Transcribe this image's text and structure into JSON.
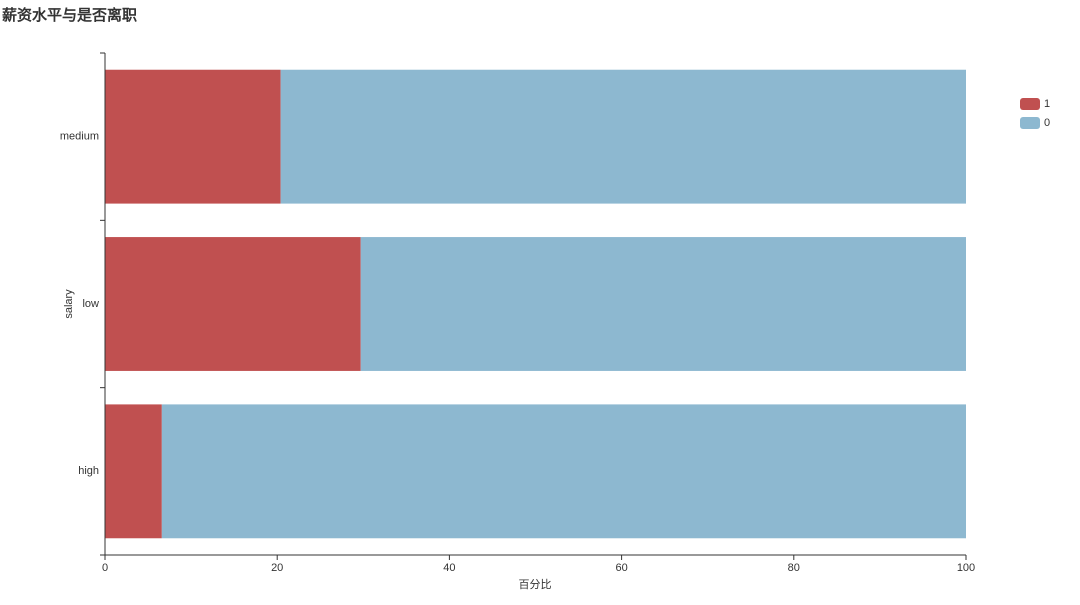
{
  "chart_data": {
    "type": "stacked-barh",
    "title": "薪资水平与是否离职",
    "x_label": "百分比",
    "y_label": "salary",
    "categories": [
      "medium",
      "low",
      "high"
    ],
    "series": [
      {
        "name": "1",
        "color": "#c05050",
        "values": [
          20.4,
          29.7,
          6.6
        ]
      },
      {
        "name": "0",
        "color": "#8db8d0",
        "values": [
          79.6,
          70.3,
          93.4
        ]
      }
    ],
    "xlim": [
      0,
      100
    ],
    "xticks": [
      0,
      20,
      40,
      60,
      80,
      100
    ],
    "legend": "upper right"
  }
}
